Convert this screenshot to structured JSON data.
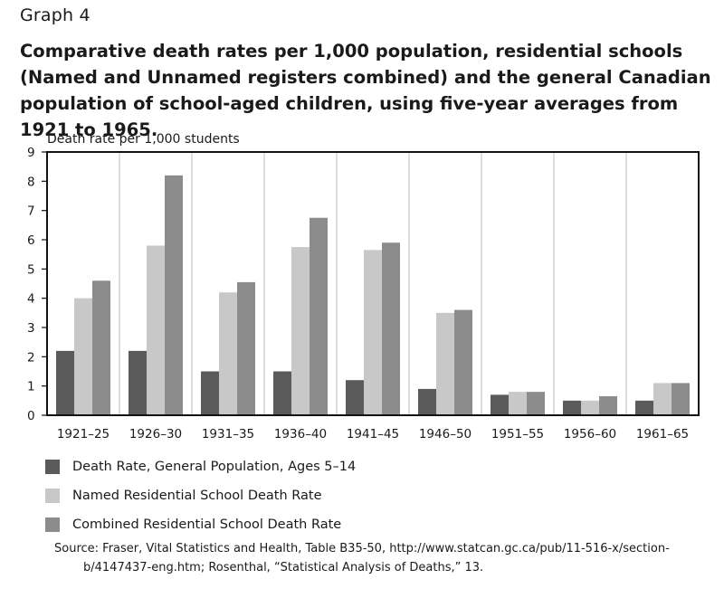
{
  "graph_label": "Graph 4",
  "source": {
    "line1": "Source: Fraser, Vital Statistics and Health, Table B35-50, http://www.statcan.gc.ca/pub/11-516-x/section-",
    "line2": "b/4147437-eng.htm; Rosenthal, “Statistical Analysis of Deaths,” 13."
  },
  "chart_data": {
    "type": "bar",
    "title": "Comparative death rates per 1,000 population, residential schools (Named and Unnamed registers combined) and the general Canadian population of school-aged children, using five-year averages from 1921 to 1965.",
    "ylabel": "Death rate per 1,000 students",
    "xlabel": "",
    "ylim": [
      0,
      9
    ],
    "yticks": [
      0,
      1,
      2,
      3,
      4,
      5,
      6,
      7,
      8,
      9
    ],
    "grid": "vertical",
    "legend_position": "bottom-left",
    "categories": [
      "1921–25",
      "1926–30",
      "1931–35",
      "1936–40",
      "1941–45",
      "1946–50",
      "1951–55",
      "1956–60",
      "1961–65"
    ],
    "series": [
      {
        "name": "Death Rate, General Population, Ages 5–14",
        "color": "#5a5a5a",
        "values": [
          2.2,
          2.2,
          1.5,
          1.5,
          1.2,
          0.9,
          0.7,
          0.5,
          0.5
        ]
      },
      {
        "name": "Named Residential School Death Rate",
        "color": "#c8c8c8",
        "values": [
          4.0,
          5.8,
          4.2,
          5.75,
          5.65,
          3.5,
          0.8,
          0.5,
          1.1
        ]
      },
      {
        "name": "Combined Residential School Death Rate",
        "color": "#8c8c8c",
        "values": [
          4.6,
          8.2,
          4.55,
          6.75,
          5.9,
          3.6,
          0.8,
          0.65,
          1.1
        ]
      }
    ]
  }
}
